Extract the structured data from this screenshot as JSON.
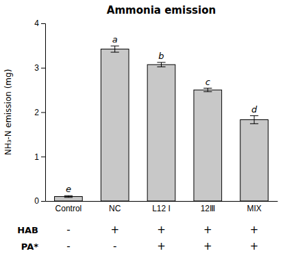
{
  "chart_data": {
    "type": "bar",
    "title": "Ammonia emission",
    "categories": [
      "Control",
      "NC",
      "L12 I",
      "12Ⅲ",
      "MIX"
    ],
    "values": [
      0.1,
      3.42,
      3.07,
      2.5,
      1.83
    ],
    "errors": [
      0.02,
      0.07,
      0.05,
      0.04,
      0.09
    ],
    "letters": [
      "e",
      "a",
      "b",
      "c",
      "d"
    ],
    "color": "#c8c8c8",
    "ylabel": "NH₃-N emission (mg)",
    "ylim": [
      0,
      4.0
    ],
    "yticks": [
      0,
      1,
      2,
      3,
      4
    ],
    "grid": false,
    "hab_label": "HAB",
    "hab_row": [
      "-",
      "+",
      "+",
      "+",
      "+"
    ],
    "pa_label": "PA*",
    "pa_row": [
      "-",
      "-",
      "+",
      "+",
      "+"
    ]
  }
}
